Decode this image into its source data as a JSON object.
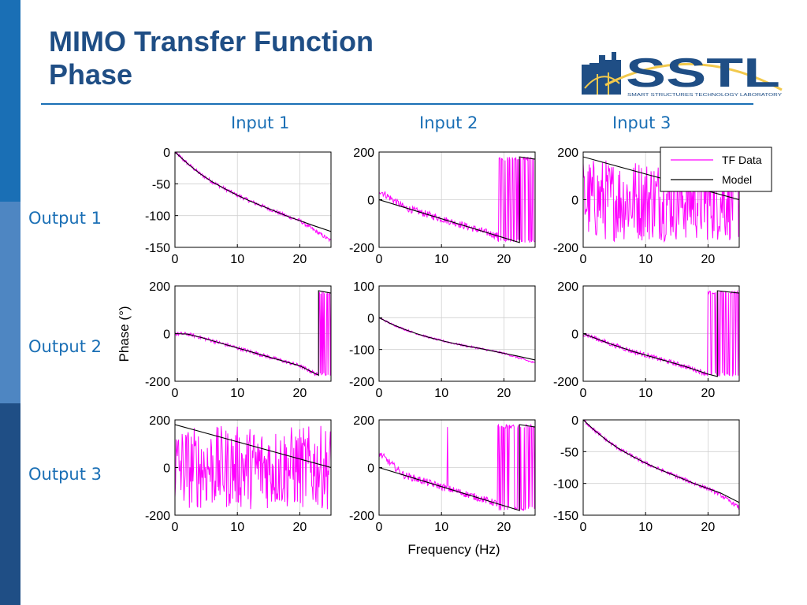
{
  "slide": {
    "title_line1": "MIMO Transfer Function",
    "title_line2": "Phase",
    "logo_text": "SSTL",
    "logo_subtext": "SMART STRUCTURES TECHNOLOGY LABORATORY",
    "inputs": [
      "Input 1",
      "Input 2",
      "Input 3"
    ],
    "outputs": [
      "Output 1",
      "Output 2",
      "Output 3"
    ],
    "colors": {
      "accent": "#1a6fb5",
      "title": "#1f4e85",
      "tf_data": "#ff00ff",
      "model": "#000000"
    }
  },
  "chart_data": {
    "type": "line",
    "ylabel": "Phase (°)",
    "xlabel": "Frequency (Hz)",
    "legend": {
      "entries": [
        "TF Data",
        "Model"
      ],
      "placement": "top-right of Output 1 / Input 3"
    },
    "xlim": [
      0,
      25
    ],
    "xticks": [
      0,
      10,
      20
    ],
    "grid": true,
    "panels": [
      {
        "row": 1,
        "col": 1,
        "ylim": [
          -150,
          0
        ],
        "yticks": [
          0,
          -50,
          -100,
          -150
        ],
        "model": [
          [
            0,
            0
          ],
          [
            2,
            -18
          ],
          [
            4,
            -34
          ],
          [
            6,
            -47
          ],
          [
            8,
            -58
          ],
          [
            10,
            -68
          ],
          [
            12,
            -77
          ],
          [
            14,
            -85
          ],
          [
            16,
            -93
          ],
          [
            18,
            -101
          ],
          [
            20,
            -108
          ],
          [
            22,
            -115
          ],
          [
            25,
            -125
          ]
        ],
        "tf_data": {
          "pattern": "follow",
          "noise": 3,
          "end_deviation": -15
        }
      },
      {
        "row": 1,
        "col": 2,
        "ylim": [
          -200,
          200
        ],
        "yticks": [
          200,
          0,
          -200
        ],
        "model": [
          [
            0,
            0
          ],
          [
            22.5,
            -180
          ],
          [
            22.5,
            180
          ],
          [
            25,
            170
          ]
        ],
        "tf_data": {
          "pattern": "follow_wrap",
          "noise": 15,
          "wrap_start": 19,
          "start_offset": 40
        }
      },
      {
        "row": 1,
        "col": 3,
        "ylim": [
          -200,
          200
        ],
        "yticks": [
          200,
          0,
          -200
        ],
        "model": [
          [
            0,
            180
          ],
          [
            25,
            0
          ]
        ],
        "tf_data": {
          "pattern": "random_full",
          "noise": 180
        }
      },
      {
        "row": 2,
        "col": 1,
        "ylim": [
          -200,
          200
        ],
        "yticks": [
          200,
          0,
          -200
        ],
        "model": [
          [
            0,
            0
          ],
          [
            2,
            -2
          ],
          [
            4,
            -15
          ],
          [
            8,
            -45
          ],
          [
            12,
            -75
          ],
          [
            16,
            -105
          ],
          [
            20,
            -135
          ],
          [
            23,
            -175
          ],
          [
            23,
            180
          ],
          [
            25,
            170
          ]
        ],
        "tf_data": {
          "pattern": "follow_wrap",
          "noise": 8,
          "wrap_start": 23.2
        }
      },
      {
        "row": 2,
        "col": 2,
        "ylim": [
          -200,
          100
        ],
        "yticks": [
          100,
          0,
          -100,
          -200
        ],
        "model": [
          [
            0,
            0
          ],
          [
            2,
            -20
          ],
          [
            4,
            -36
          ],
          [
            6,
            -50
          ],
          [
            8,
            -62
          ],
          [
            10,
            -72
          ],
          [
            12,
            -81
          ],
          [
            14,
            -89
          ],
          [
            16,
            -96
          ],
          [
            18,
            -104
          ],
          [
            20,
            -112
          ],
          [
            22,
            -120
          ],
          [
            25,
            -133
          ]
        ],
        "tf_data": {
          "pattern": "follow",
          "noise": 3,
          "end_deviation": -10
        }
      },
      {
        "row": 2,
        "col": 3,
        "ylim": [
          -200,
          200
        ],
        "yticks": [
          200,
          0,
          -200
        ],
        "model": [
          [
            0,
            0
          ],
          [
            4,
            -40
          ],
          [
            8,
            -75
          ],
          [
            12,
            -105
          ],
          [
            16,
            -135
          ],
          [
            20,
            -170
          ],
          [
            21.5,
            -180
          ],
          [
            21.5,
            180
          ],
          [
            25,
            170
          ]
        ],
        "tf_data": {
          "pattern": "follow_wrap",
          "noise": 10,
          "wrap_start": 20
        }
      },
      {
        "row": 3,
        "col": 1,
        "ylim": [
          -200,
          200
        ],
        "yticks": [
          200,
          0,
          -200
        ],
        "model": [
          [
            0,
            180
          ],
          [
            25,
            0
          ]
        ],
        "tf_data": {
          "pattern": "random_full",
          "noise": 180
        }
      },
      {
        "row": 3,
        "col": 2,
        "ylim": [
          -200,
          200
        ],
        "yticks": [
          200,
          0,
          -200
        ],
        "model": [
          [
            0,
            0
          ],
          [
            22.5,
            -180
          ],
          [
            22.5,
            180
          ],
          [
            25,
            170
          ]
        ],
        "tf_data": {
          "pattern": "follow_wrap",
          "noise": 15,
          "wrap_start": 19,
          "start_offset": 60,
          "spike_at": 11
        }
      },
      {
        "row": 3,
        "col": 3,
        "ylim": [
          -150,
          0
        ],
        "yticks": [
          0,
          -50,
          -100,
          -150
        ],
        "model": [
          [
            0,
            0
          ],
          [
            2,
            -18
          ],
          [
            4,
            -34
          ],
          [
            6,
            -47
          ],
          [
            8,
            -58
          ],
          [
            10,
            -68
          ],
          [
            12,
            -77
          ],
          [
            14,
            -85
          ],
          [
            16,
            -93
          ],
          [
            18,
            -101
          ],
          [
            20,
            -108
          ],
          [
            22,
            -115
          ],
          [
            25,
            -130
          ]
        ],
        "tf_data": {
          "pattern": "follow",
          "noise": 3,
          "end_deviation": -8
        }
      }
    ]
  }
}
